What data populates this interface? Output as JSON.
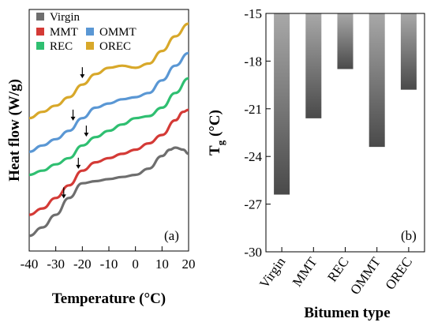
{
  "chart_data": [
    {
      "panel_label": "(a)",
      "type": "line",
      "xlabel": "Temperature (°C)",
      "ylabel": "Heat flow (W/g)",
      "xlim": [
        -40,
        20
      ],
      "x_ticks": [
        "-40",
        "-30",
        "-20",
        "-10",
        "0",
        "10",
        "20"
      ],
      "y_ticks_labeled": false,
      "legend_position": "top-left",
      "series": [
        {
          "name": "Virgin",
          "color": "#6e6e6e",
          "x": [
            -40,
            -35,
            -30,
            -25,
            -20,
            -15,
            -10,
            -5,
            0,
            5,
            10,
            13,
            15,
            18,
            20
          ],
          "y": [
            0.05,
            0.09,
            0.15,
            0.23,
            0.3,
            0.31,
            0.32,
            0.33,
            0.34,
            0.37,
            0.43,
            0.46,
            0.47,
            0.46,
            0.44
          ],
          "tg_marker_x": -27
        },
        {
          "name": "MMT",
          "color": "#d43a36",
          "x": [
            -40,
            -35,
            -30,
            -25,
            -20,
            -15,
            -10,
            -5,
            0,
            5,
            10,
            15,
            18,
            20
          ],
          "y": [
            0.15,
            0.18,
            0.23,
            0.29,
            0.36,
            0.4,
            0.42,
            0.44,
            0.46,
            0.49,
            0.53,
            0.6,
            0.64,
            0.65
          ],
          "tg_marker_x": -21.5
        },
        {
          "name": "REC",
          "color": "#2fbf71",
          "x": [
            -40,
            -35,
            -30,
            -25,
            -20,
            -15,
            -10,
            -5,
            0,
            5,
            10,
            15,
            20
          ],
          "y": [
            0.34,
            0.36,
            0.39,
            0.42,
            0.48,
            0.52,
            0.55,
            0.58,
            0.61,
            0.62,
            0.66,
            0.73,
            0.8
          ],
          "tg_marker_x": -18.5
        },
        {
          "name": "OMMT",
          "color": "#5a97d4",
          "x": [
            -40,
            -35,
            -30,
            -25,
            -20,
            -15,
            -10,
            -5,
            0,
            5,
            10,
            15,
            20
          ],
          "y": [
            0.45,
            0.48,
            0.51,
            0.55,
            0.61,
            0.66,
            0.68,
            0.7,
            0.71,
            0.73,
            0.79,
            0.86,
            0.92
          ],
          "tg_marker_x": -23.5
        },
        {
          "name": "OREC",
          "color": "#d8a82a",
          "x": [
            -40,
            -35,
            -30,
            -25,
            -20,
            -15,
            -10,
            -5,
            0,
            5,
            10,
            15,
            20
          ],
          "y": [
            0.61,
            0.64,
            0.67,
            0.71,
            0.77,
            0.82,
            0.85,
            0.86,
            0.85,
            0.87,
            0.93,
            1.0,
            1.06
          ],
          "tg_marker_x": -20
        }
      ],
      "legend_entries": [
        "Virgin",
        "MMT",
        "OMMT",
        "REC",
        "OREC"
      ]
    },
    {
      "panel_label": "(b)",
      "type": "bar",
      "xlabel": "Bitumen type",
      "ylabel": "T",
      "ylabel_sub": "g",
      "ylabel_unit": " (°C)",
      "ylim": [
        -30,
        -15
      ],
      "y_ticks": [
        "-15",
        "-18",
        "-21",
        "-24",
        "-27",
        "-30"
      ],
      "categories": [
        "Virgin",
        "MMT",
        "REC",
        "OMMT",
        "OREC"
      ],
      "values": [
        -26.4,
        -21.6,
        -18.5,
        -23.4,
        -19.8
      ],
      "bar_gradient": [
        "#a8a8a8",
        "#4a4a4a"
      ]
    }
  ]
}
